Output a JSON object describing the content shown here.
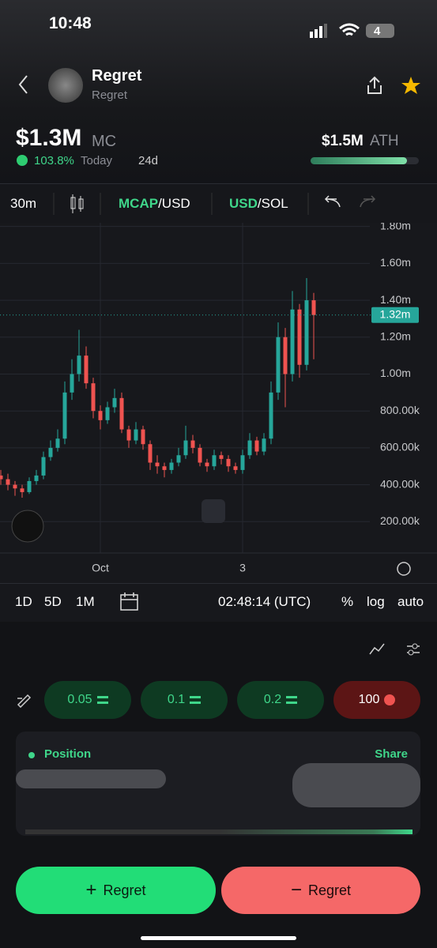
{
  "status_bar": {
    "time": "10:48",
    "battery": "4"
  },
  "header": {
    "name": "Regret",
    "ticker": "Regret"
  },
  "stats": {
    "market_cap": "$1.3M",
    "mc_label": "MC",
    "change": "103.8%",
    "change_period": "Today",
    "age": "24d",
    "ath": "$1.5M",
    "ath_label": "ATH"
  },
  "toolbar": {
    "interval": "30m",
    "pair1": {
      "highlight": "MCAP",
      "rest": "/USD"
    },
    "pair2": {
      "highlight": "USD",
      "rest": "/SOL"
    }
  },
  "chart_data": {
    "type": "candlestick",
    "up_color": "#26a69a",
    "down_color": "#ef5350",
    "grid": true,
    "categories": [
      null,
      null,
      null,
      null,
      null,
      null,
      null,
      null,
      null,
      null,
      null,
      null,
      null,
      null,
      "Oct",
      null,
      null,
      null,
      null,
      null,
      null,
      null,
      null,
      null,
      null,
      null,
      null,
      null,
      null,
      null,
      null,
      null,
      null,
      null,
      "3",
      null,
      null,
      null,
      null,
      null,
      null,
      null,
      null,
      null,
      null
    ],
    "open": [
      450000,
      430000,
      400000,
      380000,
      360000,
      420000,
      450000,
      550000,
      600000,
      650000,
      900000,
      1000000,
      1100000,
      950000,
      800000,
      750000,
      820000,
      870000,
      700000,
      640000,
      700000,
      620000,
      520000,
      500000,
      480000,
      520000,
      560000,
      640000,
      600000,
      520000,
      500000,
      560000,
      540000,
      500000,
      480000,
      560000,
      640000,
      580000,
      650000,
      900000,
      1200000,
      1000000,
      1350000,
      1050000,
      1400000
    ],
    "high": [
      480000,
      460000,
      420000,
      400000,
      440000,
      480000,
      580000,
      640000,
      700000,
      960000,
      1080000,
      1240000,
      1150000,
      980000,
      830000,
      850000,
      920000,
      900000,
      720000,
      740000,
      720000,
      640000,
      560000,
      520000,
      540000,
      600000,
      720000,
      670000,
      620000,
      540000,
      590000,
      580000,
      560000,
      520000,
      590000,
      680000,
      660000,
      680000,
      960000,
      1280000,
      1250000,
      1450000,
      1380000,
      1520000,
      1440000
    ],
    "low": [
      400000,
      370000,
      340000,
      330000,
      350000,
      400000,
      430000,
      530000,
      580000,
      620000,
      860000,
      960000,
      920000,
      760000,
      700000,
      730000,
      790000,
      680000,
      600000,
      620000,
      590000,
      480000,
      460000,
      440000,
      460000,
      500000,
      540000,
      570000,
      500000,
      470000,
      480000,
      510000,
      470000,
      460000,
      460000,
      540000,
      560000,
      560000,
      620000,
      860000,
      820000,
      960000,
      980000,
      1020000,
      1080000
    ],
    "close": [
      430000,
      400000,
      380000,
      360000,
      420000,
      450000,
      550000,
      600000,
      650000,
      900000,
      1000000,
      1100000,
      950000,
      800000,
      750000,
      820000,
      870000,
      700000,
      640000,
      700000,
      620000,
      520000,
      500000,
      480000,
      520000,
      560000,
      640000,
      600000,
      520000,
      500000,
      560000,
      540000,
      500000,
      480000,
      560000,
      640000,
      580000,
      650000,
      900000,
      1200000,
      1000000,
      1350000,
      1050000,
      1400000,
      1320000
    ],
    "ylim": [
      30000,
      1820000
    ],
    "yticks": [
      {
        "value": 1800000,
        "label": "1.80m"
      },
      {
        "value": 1600000,
        "label": "1.60m"
      },
      {
        "value": 1400000,
        "label": "1.40m"
      },
      {
        "value": 1200000,
        "label": "1.20m"
      },
      {
        "value": 1000000,
        "label": "1.00m"
      },
      {
        "value": 800000,
        "label": "800.00k"
      },
      {
        "value": 600000,
        "label": "600.00k"
      },
      {
        "value": 400000,
        "label": "400.00k"
      },
      {
        "value": 200000,
        "label": "200.00k"
      }
    ],
    "last_price": {
      "value": 1320000,
      "label": "1.32m"
    }
  },
  "chart_toolbar": {
    "ranges": [
      "1D",
      "5D",
      "1M"
    ],
    "time": "02:48:14 (UTC)",
    "options": [
      "%",
      "log",
      "auto"
    ]
  },
  "quick_buy": {
    "amounts": [
      "0.05",
      "0.1",
      "0.2"
    ],
    "sell": "100"
  },
  "position": {
    "title": "Position",
    "share": "Share"
  },
  "actions": {
    "buy": "Regret",
    "sell": "Regret"
  }
}
